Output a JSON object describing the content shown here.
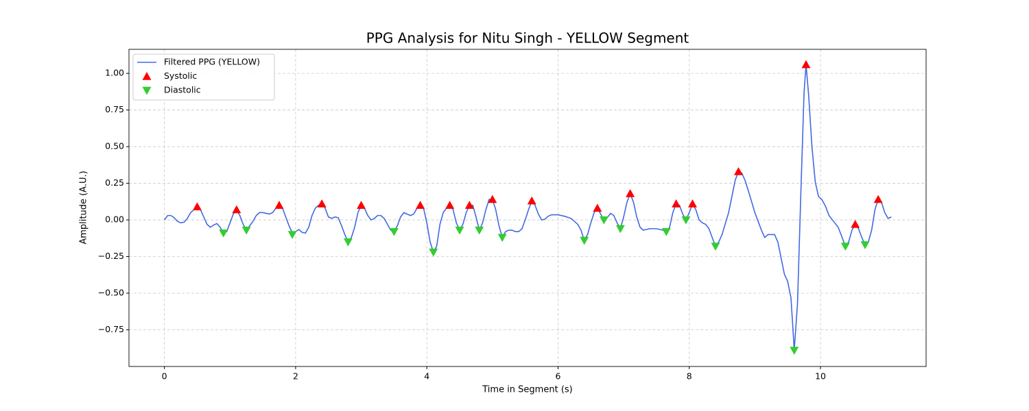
{
  "chart_data": {
    "type": "line",
    "title": "PPG Analysis for Nitu Singh - YELLOW Segment",
    "xlabel": "Time in Segment (s)",
    "ylabel": "Amplitude (A.U.)",
    "xlim": [
      -0.54,
      11.61
    ],
    "ylim": [
      -1.0,
      1.164
    ],
    "xticks": [
      0,
      2,
      4,
      6,
      8,
      10
    ],
    "yticks": [
      {
        "value": -0.75,
        "label": "−0.75"
      },
      {
        "value": -0.5,
        "label": "−0.50"
      },
      {
        "value": -0.25,
        "label": "−0.25"
      },
      {
        "value": 0,
        "label": "0.00"
      },
      {
        "value": 0.25,
        "label": "0.25"
      },
      {
        "value": 0.5,
        "label": "0.50"
      },
      {
        "value": 0.75,
        "label": "0.75"
      },
      {
        "value": 1.0,
        "label": "1.00"
      }
    ],
    "grid": true,
    "legend": "upper left",
    "series": [
      {
        "name": "Filtered PPG (YELLOW)",
        "color": "#4169e1",
        "marker": "line",
        "x": [
          0,
          0.05,
          0.1,
          0.15,
          0.2,
          0.25,
          0.3,
          0.35,
          0.4,
          0.5,
          0.55,
          0.6,
          0.65,
          0.7,
          0.75,
          0.8,
          0.85,
          0.9,
          0.95,
          1.0,
          1.05,
          1.1,
          1.15,
          1.2,
          1.25,
          1.3,
          1.35,
          1.4,
          1.45,
          1.5,
          1.55,
          1.6,
          1.65,
          1.7,
          1.75,
          1.8,
          1.85,
          1.9,
          1.95,
          2.0,
          2.05,
          2.1,
          2.15,
          2.2,
          2.25,
          2.3,
          2.35,
          2.4,
          2.45,
          2.5,
          2.55,
          2.6,
          2.65,
          2.7,
          2.75,
          2.8,
          2.85,
          2.9,
          2.95,
          3.0,
          3.05,
          3.1,
          3.15,
          3.2,
          3.25,
          3.3,
          3.35,
          3.4,
          3.45,
          3.5,
          3.55,
          3.6,
          3.65,
          3.7,
          3.75,
          3.8,
          3.85,
          3.9,
          3.95,
          4.0,
          4.05,
          4.1,
          4.15,
          4.2,
          4.25,
          4.3,
          4.35,
          4.4,
          4.45,
          4.5,
          4.55,
          4.6,
          4.65,
          4.7,
          4.75,
          4.8,
          4.85,
          4.9,
          4.95,
          5.0,
          5.05,
          5.1,
          5.15,
          5.2,
          5.25,
          5.3,
          5.35,
          5.4,
          5.45,
          5.5,
          5.55,
          5.6,
          5.65,
          5.7,
          5.75,
          5.8,
          5.85,
          5.9,
          6.0,
          6.1,
          6.2,
          6.3,
          6.35,
          6.4,
          6.45,
          6.5,
          6.55,
          6.6,
          6.65,
          6.7,
          6.75,
          6.8,
          6.85,
          6.9,
          6.95,
          7.0,
          7.05,
          7.1,
          7.15,
          7.2,
          7.25,
          7.3,
          7.4,
          7.5,
          7.6,
          7.65,
          7.7,
          7.75,
          7.8,
          7.85,
          7.9,
          7.95,
          8.0,
          8.05,
          8.1,
          8.15,
          8.2,
          8.25,
          8.3,
          8.35,
          8.4,
          8.45,
          8.5,
          8.6,
          8.7,
          8.75,
          8.8,
          8.85,
          8.9,
          9.0,
          9.05,
          9.1,
          9.15,
          9.2,
          9.3,
          9.35,
          9.4,
          9.45,
          9.5,
          9.55,
          9.58,
          9.6,
          9.65,
          9.7,
          9.75,
          9.78,
          9.82,
          9.87,
          9.92,
          9.97,
          10.02,
          10.08,
          10.13,
          10.2,
          10.27,
          10.33,
          10.38,
          10.43,
          10.48,
          10.53,
          10.58,
          10.63,
          10.68,
          10.73,
          10.78,
          10.83,
          10.88,
          10.93,
          10.98,
          11.03,
          11.08
        ],
        "values": [
          0,
          0.03,
          0.03,
          0.015,
          -0.01,
          -0.02,
          -0.015,
          0.01,
          0.05,
          0.09,
          0.07,
          0.02,
          -0.03,
          -0.05,
          -0.035,
          -0.025,
          -0.05,
          -0.09,
          -0.08,
          -0.02,
          0.04,
          0.07,
          0.03,
          -0.03,
          -0.07,
          -0.04,
          -0.01,
          0.03,
          0.05,
          0.05,
          0.045,
          0.04,
          0.05,
          0.08,
          0.1,
          0.08,
          0.02,
          -0.04,
          -0.09,
          -0.08,
          -0.065,
          -0.085,
          -0.09,
          -0.05,
          0.03,
          0.08,
          0.1,
          0.11,
          0.08,
          0.02,
          0.01,
          0.02,
          0.015,
          -0.04,
          -0.1,
          -0.15,
          -0.12,
          -0.05,
          0.05,
          0.1,
          0.08,
          0.03,
          0,
          0.01,
          0.03,
          0.03,
          0.01,
          -0.03,
          -0.07,
          -0.08,
          -0.04,
          0.02,
          0.05,
          0.04,
          0.03,
          0.04,
          0.08,
          0.1,
          0.08,
          -0.02,
          -0.15,
          -0.22,
          -0.18,
          -0.03,
          0.05,
          0.08,
          0.1,
          0.07,
          -0.02,
          -0.07,
          -0.03,
          0.05,
          0.1,
          0.1,
          0.02,
          -0.07,
          -0.02,
          0.07,
          0.14,
          0.14,
          0.07,
          -0.04,
          -0.12,
          -0.08,
          -0.07,
          -0.07,
          -0.08,
          -0.08,
          -0.06,
          0,
          0.07,
          0.13,
          0.1,
          0.04,
          0,
          0.005,
          0.025,
          0.035,
          0.035,
          0.025,
          0.01,
          -0.03,
          -0.07,
          -0.14,
          -0.1,
          -0.02,
          0.05,
          0.08,
          0.04,
          0,
          0.015,
          0.045,
          0.03,
          -0.02,
          -0.06,
          0.02,
          0.12,
          0.18,
          0.12,
          0.02,
          -0.05,
          -0.07,
          -0.06,
          -0.06,
          -0.07,
          -0.08,
          -0.05,
          0.05,
          0.11,
          0.1,
          0.04,
          0,
          0.05,
          0.11,
          0.07,
          0,
          -0.02,
          -0.03,
          -0.06,
          -0.12,
          -0.18,
          -0.15,
          -0.1,
          0.05,
          0.27,
          0.33,
          0.32,
          0.27,
          0.2,
          0.05,
          -0.01,
          -0.07,
          -0.12,
          -0.1,
          -0.1,
          -0.15,
          -0.26,
          -0.37,
          -0.42,
          -0.53,
          -0.74,
          -0.89,
          -0.57,
          0.17,
          0.87,
          1.06,
          0.85,
          0.5,
          0.26,
          0.16,
          0.14,
          0.09,
          0.03,
          -0.01,
          -0.05,
          -0.12,
          -0.18,
          -0.15,
          -0.07,
          -0.03,
          -0.06,
          -0.12,
          -0.17,
          -0.15,
          -0.07,
          0.07,
          0.14,
          0.12,
          0.05,
          0.01,
          0.02
        ]
      },
      {
        "name": "Systolic",
        "color": "#ff0000",
        "marker": "^",
        "x": [
          0.5,
          1.1,
          1.75,
          2.4,
          3.0,
          3.9,
          4.35,
          4.65,
          5.0,
          5.6,
          6.6,
          7.1,
          7.8,
          8.05,
          8.75,
          9.78,
          10.53,
          10.88
        ],
        "values": [
          0.09,
          0.07,
          0.1,
          0.11,
          0.1,
          0.1,
          0.1,
          0.1,
          0.14,
          0.13,
          0.08,
          0.18,
          0.11,
          0.11,
          0.33,
          1.06,
          -0.03,
          0.14
        ]
      },
      {
        "name": "Diastolic",
        "color": "#32cd32",
        "marker": "v",
        "x": [
          0.9,
          1.25,
          1.95,
          2.8,
          3.5,
          4.1,
          4.5,
          4.8,
          5.15,
          6.4,
          6.7,
          6.95,
          7.65,
          7.95,
          8.4,
          9.6,
          10.38,
          10.68
        ],
        "values": [
          -0.09,
          -0.07,
          -0.1,
          -0.15,
          -0.08,
          -0.22,
          -0.07,
          -0.07,
          -0.12,
          -0.14,
          0,
          -0.06,
          -0.08,
          0,
          -0.18,
          -0.89,
          -0.18,
          -0.17
        ]
      }
    ]
  }
}
